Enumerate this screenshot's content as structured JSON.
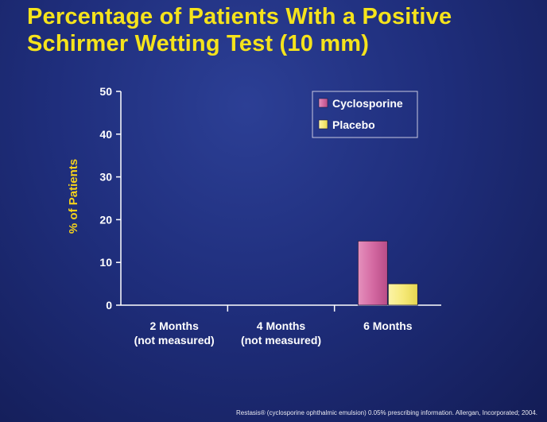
{
  "title_lines": [
    "Percentage of Patients With a Positive",
    "Schirmer Wetting Test (10 mm)"
  ],
  "footer_text": "Restasis® (cyclosporine ophthalmic emulsion) 0.05% prescribing information. Allergan, Incorporated; 2004.",
  "colors": {
    "title": "#f5e31c",
    "ylabel": "#f5d21c",
    "cyclosporine": "#d46aa2",
    "placebo": "#f6ea7a"
  },
  "chart_data": {
    "type": "bar",
    "title": "Percentage of Patients With a Positive Schirmer Wetting Test (10 mm)",
    "ylabel": "% of Patients",
    "xlabel": "",
    "ylim": [
      0,
      50
    ],
    "yticks": [
      0,
      10,
      20,
      30,
      40,
      50
    ],
    "categories": [
      [
        "2 Months",
        "(not measured)"
      ],
      [
        "4 Months",
        "(not measured)"
      ],
      [
        "6 Months"
      ]
    ],
    "series": [
      {
        "name": "Cyclosporine",
        "values": [
          null,
          null,
          15
        ]
      },
      {
        "name": "Placebo",
        "values": [
          null,
          null,
          5
        ]
      }
    ],
    "legend": "top-right"
  }
}
